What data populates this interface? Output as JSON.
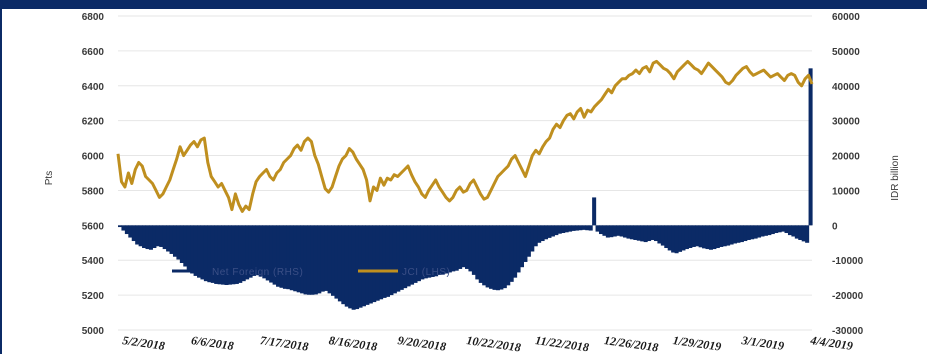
{
  "chart_data": {
    "type": "line",
    "title": "",
    "left_axis": {
      "label": "Pts",
      "ticks": [
        "6800",
        "6600",
        "6400",
        "6200",
        "6000",
        "5800",
        "5600",
        "5400",
        "5200",
        "5000"
      ],
      "ylim": [
        5000,
        6800
      ]
    },
    "right_axis": {
      "label": "IDR billion",
      "ticks": [
        "60000",
        "50000",
        "40000",
        "30000",
        "20000",
        "10000",
        "0",
        "-10000",
        "-20000",
        "-30000"
      ],
      "ylim": [
        -30000,
        60000
      ]
    },
    "x_tick_labels": [
      "5/2/2018",
      "6/6/2018",
      "7/17/2018",
      "8/16/2018",
      "9/20/2018",
      "10/22/2018",
      "11/22/2018",
      "12/26/2018",
      "1/29/2019",
      "3/1/2019",
      "4/4/2019"
    ],
    "legend": [
      {
        "name": "Net Foreign (RHS)",
        "type": "area",
        "color": "#0b2a66"
      },
      {
        "name": "JCI (LHS)",
        "type": "line",
        "color": "#bf8f1f"
      }
    ],
    "legend_position": "bottom-left",
    "grid": true,
    "series": [
      {
        "name": "JCI (LHS)",
        "axis": "left",
        "color": "#bf8f1f",
        "values": [
          6010,
          5850,
          5820,
          5900,
          5840,
          5920,
          5960,
          5940,
          5880,
          5860,
          5840,
          5800,
          5760,
          5780,
          5820,
          5860,
          5920,
          5980,
          6050,
          6000,
          6030,
          6060,
          6080,
          6050,
          6090,
          6100,
          5960,
          5880,
          5850,
          5820,
          5840,
          5800,
          5760,
          5690,
          5780,
          5720,
          5680,
          5710,
          5690,
          5780,
          5850,
          5880,
          5900,
          5920,
          5880,
          5860,
          5900,
          5920,
          5960,
          5980,
          6000,
          6040,
          6060,
          6030,
          6080,
          6100,
          6080,
          6000,
          5950,
          5880,
          5810,
          5790,
          5820,
          5880,
          5940,
          5980,
          6000,
          6040,
          6020,
          5980,
          5950,
          5920,
          5860,
          5740,
          5820,
          5800,
          5870,
          5830,
          5870,
          5860,
          5890,
          5880,
          5900,
          5920,
          5940,
          5890,
          5850,
          5820,
          5780,
          5760,
          5800,
          5830,
          5860,
          5820,
          5790,
          5760,
          5740,
          5760,
          5800,
          5820,
          5790,
          5800,
          5840,
          5860,
          5820,
          5780,
          5750,
          5760,
          5800,
          5840,
          5880,
          5900,
          5920,
          5940,
          5980,
          6000,
          5960,
          5920,
          5880,
          5940,
          6000,
          6030,
          6010,
          6050,
          6080,
          6100,
          6150,
          6180,
          6160,
          6200,
          6230,
          6240,
          6210,
          6250,
          6270,
          6220,
          6260,
          6250,
          6280,
          6300,
          6320,
          6350,
          6380,
          6360,
          6400,
          6420,
          6440,
          6440,
          6460,
          6470,
          6490,
          6470,
          6500,
          6510,
          6480,
          6530,
          6540,
          6520,
          6500,
          6490,
          6470,
          6440,
          6480,
          6500,
          6520,
          6540,
          6520,
          6500,
          6490,
          6470,
          6500,
          6530,
          6510,
          6490,
          6470,
          6450,
          6420,
          6410,
          6430,
          6460,
          6480,
          6500,
          6510,
          6480,
          6460,
          6470,
          6480,
          6490,
          6470,
          6450,
          6460,
          6470,
          6450,
          6430,
          6460,
          6470,
          6460,
          6420,
          6400,
          6440,
          6460,
          6410
        ]
      },
      {
        "name": "Net Foreign (RHS)",
        "axis": "right",
        "color": "#0b2a66",
        "values": [
          -500,
          -1500,
          -2500,
          -3500,
          -4500,
          -5500,
          -6000,
          -6500,
          -6800,
          -7000,
          -6500,
          -6000,
          -6200,
          -6800,
          -7500,
          -8200,
          -9000,
          -9800,
          -10800,
          -11800,
          -12800,
          -13800,
          -14500,
          -15000,
          -15500,
          -16000,
          -16300,
          -16500,
          -16800,
          -16900,
          -17000,
          -17100,
          -17000,
          -16900,
          -16800,
          -16500,
          -16000,
          -15500,
          -15000,
          -14500,
          -14300,
          -14600,
          -15200,
          -15800,
          -16400,
          -17000,
          -17600,
          -17900,
          -18200,
          -18300,
          -18600,
          -18900,
          -19200,
          -19500,
          -19800,
          -19900,
          -19900,
          -19800,
          -19500,
          -19000,
          -18800,
          -19500,
          -20200,
          -21000,
          -21800,
          -22600,
          -23300,
          -23800,
          -24200,
          -24000,
          -23600,
          -23200,
          -22800,
          -22400,
          -22000,
          -21600,
          -21200,
          -20800,
          -20500,
          -20000,
          -19500,
          -19000,
          -18500,
          -18000,
          -17500,
          -17000,
          -16500,
          -16000,
          -15500,
          -15200,
          -15000,
          -14800,
          -14600,
          -14200,
          -14000,
          -13800,
          -13500,
          -13200,
          -13000,
          -12500,
          -12000,
          -12500,
          -13200,
          -14200,
          -15500,
          -16500,
          -17200,
          -17800,
          -18200,
          -18500,
          -18600,
          -18400,
          -18000,
          -17200,
          -16200,
          -15000,
          -13500,
          -12000,
          -10500,
          -9000,
          -7500,
          -6000,
          -5000,
          -4500,
          -4000,
          -3600,
          -3200,
          -2800,
          -2400,
          -2200,
          -2000,
          -1800,
          -1600,
          -1500,
          -1400,
          -1300,
          -1400,
          -1500,
          8000,
          -1800,
          -2500,
          -3000,
          -3500,
          -3400,
          -3200,
          -3000,
          -3200,
          -3500,
          -3800,
          -4000,
          -4200,
          -4400,
          -4600,
          -4800,
          -4500,
          -4200,
          -4500,
          -5200,
          -5800,
          -6500,
          -7200,
          -7800,
          -8000,
          -7600,
          -7200,
          -6800,
          -6500,
          -6200,
          -6000,
          -6300,
          -6600,
          -6800,
          -7000,
          -6800,
          -6500,
          -6200,
          -6000,
          -5800,
          -5500,
          -5200,
          -5000,
          -4800,
          -4500,
          -4200,
          -4000,
          -3800,
          -3500,
          -3200,
          -3000,
          -2800,
          -2500,
          -2200,
          -2000,
          -1800,
          -2200,
          -2800,
          -3200,
          -3800,
          -4200,
          -4600,
          -5000,
          45000
        ]
      }
    ]
  }
}
